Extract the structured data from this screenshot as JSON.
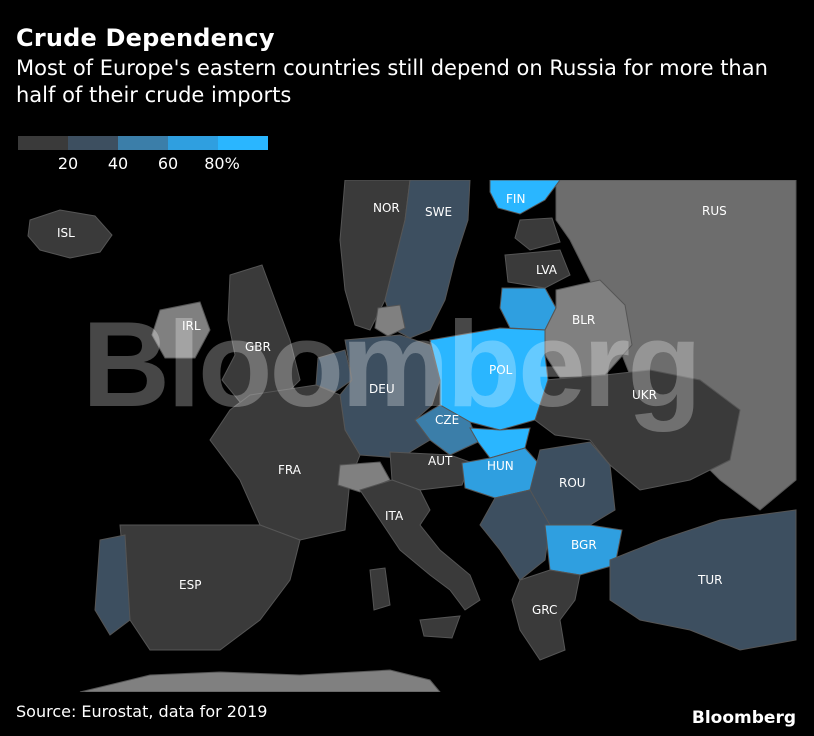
{
  "title": "Crude Dependency",
  "subtitle": "Most of Europe's eastern countries still depend on Russia for more than half of their crude imports",
  "legend": {
    "bins": [
      "#3a3a3a",
      "#3d4f60",
      "#3b7ea9",
      "#2f9fe0",
      "#2ab6ff"
    ],
    "labels": [
      "20",
      "40",
      "60",
      "80%"
    ]
  },
  "colors": {
    "none": "#808080",
    "sea": "#000000",
    "russia": "#6d6d6d",
    "border": "#555555"
  },
  "countries": {
    "ISL": "ISL",
    "NOR": "NOR",
    "SWE": "SWE",
    "FIN": "FIN",
    "RUS": "RUS",
    "LVA": "LVA",
    "BLR": "BLR",
    "IRL": "IRL",
    "GBR": "GBR",
    "POL": "POL",
    "DEU": "DEU",
    "UKR": "UKR",
    "CZE": "CZE",
    "FRA": "FRA",
    "AUT": "AUT",
    "HUN": "HUN",
    "ROU": "ROU",
    "ITA": "ITA",
    "BGR": "BGR",
    "ESP": "ESP",
    "TUR": "TUR",
    "GRC": "GRC"
  },
  "source": "Source: Eurostat, data for 2019",
  "brand": "Bloomberg",
  "watermark": "Bloomberg"
}
